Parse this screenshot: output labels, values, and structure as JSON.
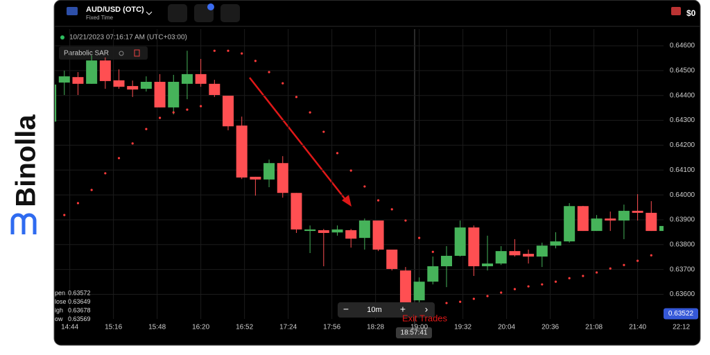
{
  "logo": "Binolla",
  "header": {
    "pair": "AUD/USD (OTC)",
    "mode": "Fixed Time",
    "balance": "$0"
  },
  "timestamp": "10/21/2023 07:16:17 AM (UTC+03:00)",
  "ohlc_panel": [
    {
      "label": "pen",
      "value": 0.63572
    },
    {
      "label": "lose",
      "value": 0.63649
    },
    {
      "label": "igh",
      "value": 0.63678
    },
    {
      "label": "ow",
      "value": 0.63569
    }
  ],
  "zoom": {
    "minus": "−",
    "interval": "10m",
    "plus": "+",
    "next": "›"
  },
  "crosshair_time": "18:57:41",
  "annotation": "Exit Trades",
  "chart_data": {
    "type": "candlestick",
    "x": [
      870,
      880,
      890,
      900,
      910,
      920,
      930,
      940,
      950,
      960,
      970,
      980,
      990,
      1000,
      1010,
      1020,
      1030,
      1040,
      1050,
      1060,
      1070,
      1080,
      1090,
      1100,
      1110,
      1120,
      1130,
      1140,
      1150,
      1160,
      1170,
      1180,
      1190,
      1200,
      1210,
      1220,
      1230,
      1240,
      1250,
      1260,
      1270,
      1280,
      1290,
      1300,
      1310,
      1320
    ],
    "open": [
      0.64295,
      0.64452,
      0.64474,
      0.64447,
      0.64541,
      0.64461,
      0.64438,
      0.64427,
      0.64455,
      0.64352,
      0.64447,
      0.64486,
      0.64447,
      0.64399,
      0.64279,
      0.64073,
      0.64062,
      0.64128,
      0.64008,
      0.63855,
      0.63858,
      0.63849,
      0.63858,
      0.63827,
      0.63897,
      0.6378,
      0.63696,
      0.63576,
      0.63651,
      0.63713,
      0.63755,
      0.63869,
      0.63713,
      0.63724,
      0.63774,
      0.63763,
      0.63752,
      0.63796,
      0.63813,
      0.63955,
      0.63855,
      0.63905,
      0.63897,
      0.63936,
      0.63928,
      0.63855
    ],
    "high": [
      0.64466,
      0.645,
      0.64494,
      0.64561,
      0.64553,
      0.64505,
      0.6446,
      0.64477,
      0.64486,
      0.64483,
      0.6458,
      0.64547,
      0.64463,
      0.64399,
      0.64315,
      0.64073,
      0.64142,
      0.64156,
      0.64008,
      0.63877,
      0.63863,
      0.63877,
      0.63863,
      0.63905,
      0.63897,
      0.6378,
      0.6371,
      0.63668,
      0.63752,
      0.63794,
      0.63897,
      0.63877,
      0.63836,
      0.63794,
      0.63822,
      0.6378,
      0.63808,
      0.6385,
      0.63967,
      0.63956,
      0.63919,
      0.63933,
      0.63961,
      0.64003,
      0.63975,
      0.63891
    ],
    "low": [
      0.6429,
      0.64402,
      0.64402,
      0.64447,
      0.64427,
      0.64427,
      0.64394,
      0.64416,
      0.64352,
      0.64324,
      0.64385,
      0.64435,
      0.64394,
      0.6426,
      0.64064,
      0.63997,
      0.64031,
      0.63989,
      0.63847,
      0.63766,
      0.63713,
      0.63836,
      0.63788,
      0.6378,
      0.63774,
      0.63696,
      0.63529,
      0.63557,
      0.6364,
      0.63629,
      0.63752,
      0.63674,
      0.63696,
      0.63718,
      0.63752,
      0.63724,
      0.6371,
      0.63785,
      0.63808,
      0.63855,
      0.63855,
      0.63855,
      0.63822,
      0.63897,
      0.63855,
      0.6378
    ],
    "close": [
      0.64444,
      0.64477,
      0.64447,
      0.64541,
      0.64458,
      0.64435,
      0.64424,
      0.64455,
      0.64352,
      0.64455,
      0.64486,
      0.64447,
      0.64402,
      0.64276,
      0.6407,
      0.64062,
      0.64128,
      0.64008,
      0.63861,
      0.63861,
      0.63847,
      0.63861,
      0.63824,
      0.63897,
      0.6378,
      0.63702,
      0.63557,
      0.63651,
      0.63713,
      0.63755,
      0.63869,
      0.63713,
      0.63724,
      0.63774,
      0.63757,
      0.63752,
      0.63796,
      0.63813,
      0.63955,
      0.63855,
      0.63905,
      0.63897,
      0.63936,
      0.63928,
      0.63855,
      0.63875
    ],
    "up_color": "#46b35a",
    "down_color": "#ff4f52",
    "series": [
      {
        "name": "Parabolic SAR",
        "color": "#ff3b3b",
        "values": [
          null,
          0.63919,
          0.63967,
          0.6402,
          0.64087,
          0.64148,
          0.64207,
          0.64265,
          0.6431,
          0.64332,
          0.64343,
          0.64357,
          0.6458,
          0.6458,
          0.64569,
          0.64539,
          0.64494,
          0.64449,
          0.64394,
          0.64332,
          0.64254,
          0.64168,
          0.64098,
          0.64034,
          0.63978,
          0.63942,
          0.63897,
          0.63827,
          0.63771,
          0.63565,
          0.6357,
          0.63582,
          0.63593,
          0.63607,
          0.63621,
          0.63632,
          0.6364,
          0.63651,
          0.63665,
          0.63674,
          0.63688,
          0.63704,
          0.63718,
          0.63735,
          0.63757,
          0.63774
        ]
      }
    ],
    "xlim": [
      873,
      1319
    ],
    "ylim": [
      0.63501,
      0.64667
    ],
    "xticks": [
      {
        "value": 884,
        "label": "14:44"
      },
      {
        "value": 916,
        "label": "15:16"
      },
      {
        "value": 948,
        "label": "15:48"
      },
      {
        "value": 980,
        "label": "16:20"
      },
      {
        "value": 1012,
        "label": "16:52"
      },
      {
        "value": 1044,
        "label": "17:24"
      },
      {
        "value": 1076,
        "label": "17:56"
      },
      {
        "value": 1108,
        "label": "18:28"
      },
      {
        "value": 1140,
        "label": "19:00"
      },
      {
        "value": 1172,
        "label": "19:32"
      },
      {
        "value": 1204,
        "label": "20:04"
      },
      {
        "value": 1236,
        "label": "20:36"
      },
      {
        "value": 1268,
        "label": "21:08"
      },
      {
        "value": 1300,
        "label": "21:40"
      },
      {
        "value": 1332,
        "label": "22:12"
      }
    ],
    "yticks": [
      {
        "value": 0.636,
        "label": "0.63600"
      },
      {
        "value": 0.637,
        "label": "0.63700"
      },
      {
        "value": 0.638,
        "label": "0.63800"
      },
      {
        "value": 0.639,
        "label": "0.63900"
      },
      {
        "value": 0.64,
        "label": "0.64000"
      },
      {
        "value": 0.641,
        "label": "0.64100"
      },
      {
        "value": 0.642,
        "label": "0.64200"
      },
      {
        "value": 0.643,
        "label": "0.64300"
      },
      {
        "value": 0.644,
        "label": "0.64400"
      },
      {
        "value": 0.645,
        "label": "0.64500"
      },
      {
        "value": 0.646,
        "label": "0.64600"
      }
    ],
    "grid": true,
    "current_price": 0.63522
  }
}
